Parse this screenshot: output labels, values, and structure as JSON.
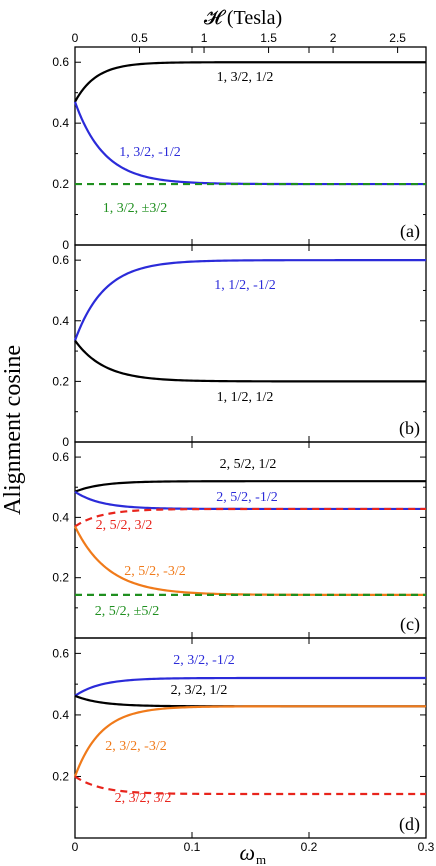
{
  "figure": {
    "top_axis_label": "𝓗 (Tesla)",
    "top_axis_ticks": [
      "0",
      "0.5",
      "1",
      "1.5",
      "2",
      "2.5"
    ],
    "y_axis_label": "Alignment cosine",
    "x_axis_label_main": "ω",
    "x_axis_label_sub": "m",
    "x_ticks": [
      "0",
      "0.1",
      "0.2",
      "0.3"
    ]
  },
  "chart_data": [
    {
      "type": "line",
      "panel_label": "(a)",
      "xlim": [
        0,
        0.3
      ],
      "ylim": [
        0,
        0.65
      ],
      "y_ticks": [
        "0",
        "0.2",
        "0.4",
        "0.6"
      ],
      "top_axis_range": [
        0,
        2.72
      ],
      "series": [
        {
          "name": "1, 3/2, 1/2",
          "color": "#000000",
          "dash": false,
          "start": 0.47,
          "end": 0.6,
          "rate": 55
        },
        {
          "name": "1, 3/2, -1/2",
          "color": "#2b2bd9",
          "dash": false,
          "start": 0.47,
          "end": 0.2,
          "rate": 40
        },
        {
          "name": "1, 3/2, ±3/2",
          "color": "#1f8f1f",
          "dash": true,
          "start": 0.2,
          "end": 0.2,
          "rate": 40
        }
      ]
    },
    {
      "type": "line",
      "panel_label": "(b)",
      "xlim": [
        0,
        0.3
      ],
      "ylim": [
        0,
        0.65
      ],
      "y_ticks": [
        "0",
        "0.2",
        "0.4",
        "0.6"
      ],
      "series": [
        {
          "name": "1, 1/2, -1/2",
          "color": "#2b2bd9",
          "dash": false,
          "start": 0.335,
          "end": 0.6,
          "rate": 40
        },
        {
          "name": "1, 1/2, 1/2",
          "color": "#000000",
          "dash": false,
          "start": 0.335,
          "end": 0.2,
          "rate": 40
        }
      ]
    },
    {
      "type": "line",
      "panel_label": "(c)",
      "xlim": [
        0,
        0.3
      ],
      "ylim": [
        0,
        0.65
      ],
      "y_ticks": [
        "0.2",
        "0.4",
        "0.6"
      ],
      "series": [
        {
          "name": "2, 5/2, 1/2",
          "color": "#000000",
          "dash": false,
          "start": 0.485,
          "end": 0.52,
          "rate": 45
        },
        {
          "name": "2, 5/2, -1/2",
          "color": "#2b2bd9",
          "dash": false,
          "start": 0.485,
          "end": 0.428,
          "rate": 45
        },
        {
          "name": "2, 5/2, 3/2",
          "color": "#e8241c",
          "dash": true,
          "start": 0.37,
          "end": 0.428,
          "rate": 45
        },
        {
          "name": "2, 5/2, -3/2",
          "color": "#f07a1a",
          "dash": false,
          "start": 0.37,
          "end": 0.143,
          "rate": 35
        },
        {
          "name": "2, 5/2, ±5/2",
          "color": "#1f8f1f",
          "dash": true,
          "start": 0.143,
          "end": 0.143,
          "rate": 35
        }
      ]
    },
    {
      "type": "line",
      "panel_label": "(d)",
      "xlim": [
        0,
        0.3
      ],
      "ylim": [
        0,
        0.65
      ],
      "y_ticks": [
        "0.2",
        "0.4",
        "0.6"
      ],
      "series": [
        {
          "name": "2, 3/2, -1/2",
          "color": "#2b2bd9",
          "dash": false,
          "start": 0.462,
          "end": 0.52,
          "rate": 45
        },
        {
          "name": "2, 3/2, 1/2",
          "color": "#000000",
          "dash": false,
          "start": 0.462,
          "end": 0.428,
          "rate": 45
        },
        {
          "name": "2, 3/2, -3/2",
          "color": "#f07a1a",
          "dash": false,
          "start": 0.2,
          "end": 0.428,
          "rate": 45
        },
        {
          "name": "2, 3/2, 3/2",
          "color": "#e8241c",
          "dash": true,
          "start": 0.2,
          "end": 0.143,
          "rate": 45
        }
      ]
    }
  ]
}
